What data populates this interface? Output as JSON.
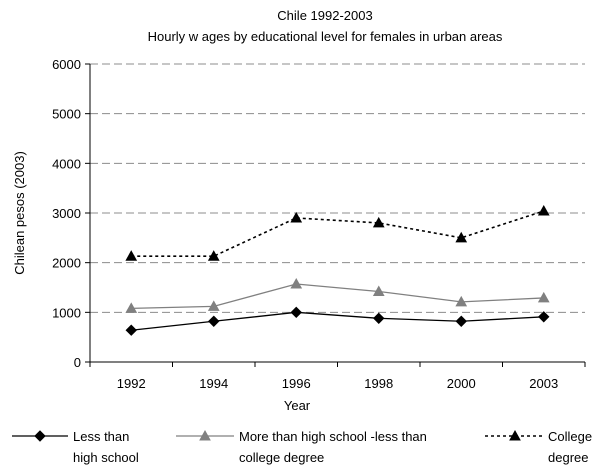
{
  "chart_data": {
    "type": "line",
    "title": "Chile 1992-2003",
    "subtitle": "Hourly w ages by educational level for females in urban areas",
    "xlabel": "Year",
    "ylabel": "Chilean pesos (2003)",
    "categories": [
      "1992",
      "1994",
      "1996",
      "1998",
      "2000",
      "2003"
    ],
    "y_ticks": [
      "0",
      "1000",
      "2000",
      "3000",
      "4000",
      "5000",
      "6000"
    ],
    "ylim": [
      0,
      6000
    ],
    "grid": true,
    "legend_placement": "bottom",
    "series": [
      {
        "name": "Less than high school",
        "legend_lines": [
          "Less than",
          "high school"
        ],
        "values": [
          640,
          820,
          1000,
          880,
          820,
          910
        ],
        "color": "#000000",
        "dash": "solid",
        "marker": "diamond"
      },
      {
        "name": "More than high school -less than college degree",
        "legend_lines": [
          "More than high school -less than",
          "college degree"
        ],
        "values": [
          1080,
          1120,
          1570,
          1420,
          1210,
          1290
        ],
        "color": "#808080",
        "dash": "solid",
        "marker": "triangle"
      },
      {
        "name": "College degree",
        "legend_lines": [
          "College",
          "degree"
        ],
        "values": [
          2130,
          2130,
          2900,
          2800,
          2500,
          3040
        ],
        "color": "#000000",
        "dash": "dotted",
        "marker": "triangle"
      }
    ]
  }
}
